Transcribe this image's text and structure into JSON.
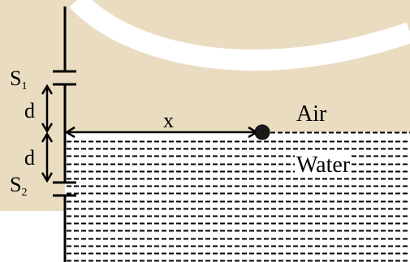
{
  "labels": {
    "s1_main": "S",
    "s1_sub": "1",
    "s2_main": "S",
    "s2_sub": "2",
    "d_upper": "d",
    "d_lower": "d",
    "x": "x",
    "air": "Air",
    "water": "Water"
  },
  "colors": {
    "background_tan": "#e9dcc1",
    "lines": "#000000",
    "water_bg": "#ffffff"
  }
}
